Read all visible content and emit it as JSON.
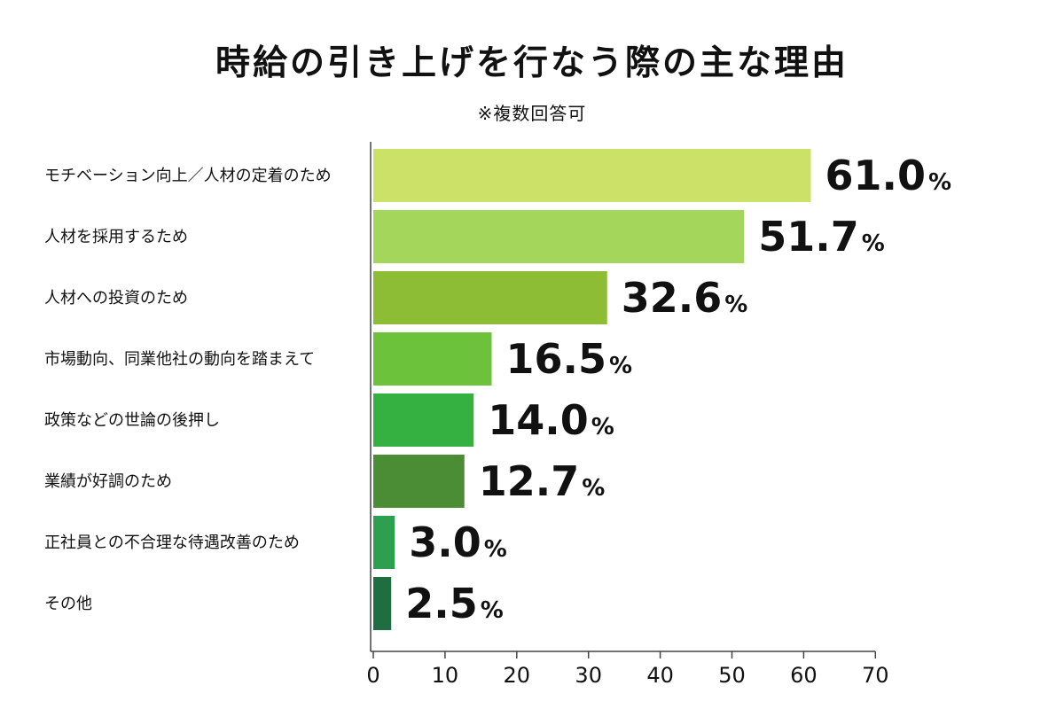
{
  "chart_data": {
    "type": "bar",
    "orientation": "horizontal",
    "title": "時給の引き上げを行なう際の主な理由",
    "subtitle": "※複数回答可",
    "unit": "%",
    "categories": [
      "モチベーション向上／人材の定着のため",
      "人材を採用するため",
      "人材への投資のため",
      "市場動向、同業他社の動向を踏まえて",
      "政策などの世論の後押し",
      "業績が好調のため",
      "正社員との不合理な待遇改善のため",
      "その他"
    ],
    "values": [
      61.0,
      51.7,
      32.6,
      16.5,
      14.0,
      12.7,
      3.0,
      2.5
    ],
    "value_labels": [
      "61.0",
      "51.7",
      "32.6",
      "16.5",
      "14.0",
      "12.7",
      "3.0",
      "2.5"
    ],
    "colors": [
      "#cbe168",
      "#a3d65a",
      "#8cbd35",
      "#6cc23a",
      "#34b140",
      "#4b8d34",
      "#2e9e4f",
      "#1f6e42"
    ],
    "xlim": [
      0,
      70
    ],
    "xticks": [
      0,
      10,
      20,
      30,
      40,
      50,
      60,
      70
    ],
    "grid": false,
    "legend": "none"
  }
}
